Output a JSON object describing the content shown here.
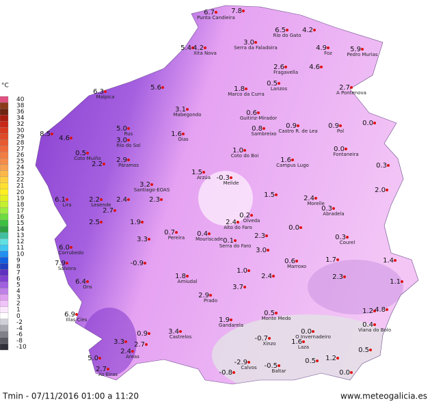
{
  "unit_label": "°C",
  "legend": [
    {
      "label": "40",
      "color": "#e05080"
    },
    {
      "label": "38",
      "color": "#8b3a1a"
    },
    {
      "label": "36",
      "color": "#6e2410"
    },
    {
      "label": "34",
      "color": "#a81c10"
    },
    {
      "label": "32",
      "color": "#c82818"
    },
    {
      "label": "30",
      "color": "#d83a20"
    },
    {
      "label": "29",
      "color": "#e04a28"
    },
    {
      "label": "28",
      "color": "#e85a30"
    },
    {
      "label": "27",
      "color": "#f06a38"
    },
    {
      "label": "26",
      "color": "#f27c42"
    },
    {
      "label": "25",
      "color": "#f58c4a"
    },
    {
      "label": "24",
      "color": "#f8a050"
    },
    {
      "label": "23",
      "color": "#fbb848"
    },
    {
      "label": "22",
      "color": "#fdd040"
    },
    {
      "label": "21",
      "color": "#ffe030"
    },
    {
      "label": "20",
      "color": "#fff020"
    },
    {
      "label": "19",
      "color": "#e4f020"
    },
    {
      "label": "18",
      "color": "#c4f030"
    },
    {
      "label": "17",
      "color": "#9cec40"
    },
    {
      "label": "16",
      "color": "#6cdc40"
    },
    {
      "label": "15",
      "color": "#3cc040"
    },
    {
      "label": "14",
      "color": "#2ca040"
    },
    {
      "label": "13",
      "color": "#40c0a0"
    },
    {
      "label": "12",
      "color": "#60e0e0"
    },
    {
      "label": "11",
      "color": "#40c8f0"
    },
    {
      "label": "10",
      "color": "#2090f0"
    },
    {
      "label": "9",
      "color": "#1060e0"
    },
    {
      "label": "8",
      "color": "#2040c0"
    },
    {
      "label": "7",
      "color": "#6030c0"
    },
    {
      "label": "6",
      "color": "#8040d0"
    },
    {
      "label": "5",
      "color": "#a060e0"
    },
    {
      "label": "4",
      "color": "#c080e8"
    },
    {
      "label": "3",
      "color": "#e0a0f0"
    },
    {
      "label": "2",
      "color": "#f0c4f8"
    },
    {
      "label": "1",
      "color": "#fbe8fd"
    },
    {
      "label": "0",
      "color": "#ffffff"
    },
    {
      "label": "-2",
      "color": "#d0d0d8"
    },
    {
      "label": "-4",
      "color": "#a8a8b0"
    },
    {
      "label": "-6",
      "color": "#808088"
    },
    {
      "label": "-8",
      "color": "#585860"
    },
    {
      "label": "-10",
      "color": "#303038"
    }
  ],
  "stations": [
    {
      "temp": "6.7",
      "name": "Punta Candieira"
    },
    {
      "temp": "7.8"
    },
    {
      "temp": "6.5",
      "name": "Río do Gato"
    },
    {
      "temp": "4.2"
    },
    {
      "temp": "3.0",
      "name": "Serra da Faladoira"
    },
    {
      "temp": "4.9",
      "name": "Foz"
    },
    {
      "temp": "5.9",
      "name": "Pedro Murias"
    },
    {
      "temp": "5.4"
    },
    {
      "temp": "4.2",
      "name": "Xita Nova"
    },
    {
      "temp": "2.6",
      "name": "Fragavella"
    },
    {
      "temp": "4.6"
    },
    {
      "temp": "0.5",
      "name": "Lanzos"
    },
    {
      "temp": "2.7",
      "name": "A Pontenova"
    },
    {
      "temp": "6.3",
      "name": "Malpica"
    },
    {
      "temp": "5.6"
    },
    {
      "temp": "1.8",
      "name": "Marco da Curra"
    },
    {
      "temp": "3.1",
      "name": "Mabegondo"
    },
    {
      "temp": "0.6",
      "name": "Guitiriz-Mirador"
    },
    {
      "temp": "0.8",
      "name": "Sambreixo"
    },
    {
      "temp": "0.9",
      "name": "Castro R. de Lea"
    },
    {
      "temp": "0.9",
      "name": "Pol"
    },
    {
      "temp": "0.0"
    },
    {
      "temp": "5.0",
      "name": "Rus"
    },
    {
      "temp": "8.5"
    },
    {
      "temp": "4.6"
    },
    {
      "temp": "1.6",
      "name": "Oias"
    },
    {
      "temp": "3.0",
      "name": "Río do Sol"
    },
    {
      "temp": "1.0",
      "name": "Coto do Boi"
    },
    {
      "temp": "0.0",
      "name": "Fontaneira"
    },
    {
      "temp": "0.5",
      "name": "Coto Muiño"
    },
    {
      "temp": "1.6",
      "name": "Campus Lugo"
    },
    {
      "temp": "2.9",
      "name": "Páramos"
    },
    {
      "temp": "2.2"
    },
    {
      "temp": "0.3"
    },
    {
      "temp": "1.5",
      "name": "Arzúa"
    },
    {
      "temp": "-0.3",
      "name": "Melide"
    },
    {
      "temp": "3.2",
      "name": "Santiago-EOAS"
    },
    {
      "temp": "2.0"
    },
    {
      "temp": "2.2",
      "name": "Lesende"
    },
    {
      "temp": "2.4"
    },
    {
      "temp": "1.5"
    },
    {
      "temp": "2.4",
      "name": "Morelle"
    },
    {
      "temp": "6.1",
      "name": "Lira"
    },
    {
      "temp": "2.3"
    },
    {
      "temp": "2.7"
    },
    {
      "temp": "0.3",
      "name": "Abradela"
    },
    {
      "temp": "0.2",
      "name": "Oíveda"
    },
    {
      "temp": "2.5"
    },
    {
      "temp": "1.9"
    },
    {
      "temp": "2.4",
      "name": "Alto do Faro"
    },
    {
      "temp": "0.7",
      "name": "Pereira"
    },
    {
      "temp": "0.4",
      "name": "Mouriscade"
    },
    {
      "temp": "0.0"
    },
    {
      "temp": "0.3",
      "name": "Courel"
    },
    {
      "temp": "6.0",
      "name": "Corrubedo"
    },
    {
      "temp": "3.3"
    },
    {
      "temp": "0.1",
      "name": "Serra do Faro"
    },
    {
      "temp": "2.3"
    },
    {
      "temp": "3.0"
    },
    {
      "temp": "0.6",
      "name": "Marroxo"
    },
    {
      "temp": "1.7"
    },
    {
      "temp": "1.4"
    },
    {
      "temp": "7.9",
      "name": "Salvora"
    },
    {
      "temp": "-0.9"
    },
    {
      "temp": "1.0"
    },
    {
      "temp": "2.4"
    },
    {
      "temp": "6.4",
      "name": "Ons"
    },
    {
      "temp": "1.8",
      "name": "Amiudal"
    },
    {
      "temp": "3.7"
    },
    {
      "temp": "2.9",
      "name": "Prado"
    },
    {
      "temp": "2.3"
    },
    {
      "temp": "1.1"
    },
    {
      "temp": "0.5",
      "name": "Monte Medo"
    },
    {
      "temp": "1.2"
    },
    {
      "temp": "4.8"
    },
    {
      "temp": "0.4",
      "name": "Viana do Bolo"
    },
    {
      "temp": "1.9",
      "name": "Gandarela"
    },
    {
      "temp": "6.9",
      "name": "Illas Cíes"
    },
    {
      "temp": "3.4",
      "name": "Castrelos"
    },
    {
      "temp": "0.0",
      "name": "O Invernadeiro"
    },
    {
      "temp": "0.9"
    },
    {
      "temp": "-0.7",
      "name": "Xinzo"
    },
    {
      "temp": "1.6",
      "name": "Laza"
    },
    {
      "temp": "3.3"
    },
    {
      "temp": "2.7"
    },
    {
      "temp": "2.4",
      "name": "Areas"
    },
    {
      "temp": "0.5"
    },
    {
      "temp": "5.0"
    },
    {
      "temp": "2.7",
      "name": "As Eiras"
    },
    {
      "temp": "-2.9",
      "name": "Calvos"
    },
    {
      "temp": "-0.5",
      "name": "Baltar"
    },
    {
      "temp": "0.5"
    },
    {
      "temp": "1.2"
    },
    {
      "temp": "0.0"
    },
    {
      "temp": "-0.8"
    }
  ],
  "footer": {
    "caption": "Tmin - 07/11/2016 01:00 a 11:20",
    "site": "www.meteogalicia.es"
  }
}
